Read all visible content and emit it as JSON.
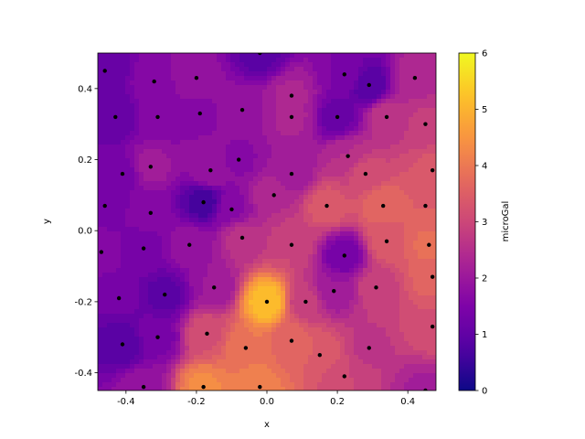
{
  "chart_data": {
    "type": "heatmap",
    "subtype": "filled-contour",
    "colormap": "plasma",
    "title": "",
    "xlabel": "x",
    "ylabel": "y",
    "colorbar_label": "microGal",
    "xlim": [
      -0.48,
      0.48
    ],
    "ylim": [
      -0.45,
      0.5
    ],
    "clim": [
      0,
      6
    ],
    "xticks": [
      "-0.4",
      "-0.2",
      "0.0",
      "0.2",
      "0.4"
    ],
    "xtick_values": [
      -0.4,
      -0.2,
      0.0,
      0.2,
      0.4
    ],
    "yticks": [
      "-0.4",
      "-0.2",
      "0.0",
      "0.2",
      "0.4"
    ],
    "ytick_values": [
      -0.4,
      -0.2,
      0.0,
      0.2,
      0.4
    ],
    "colorbar_ticks": [
      "0",
      "1",
      "2",
      "3",
      "4",
      "5",
      "6"
    ],
    "colorbar_tick_values": [
      0,
      1,
      2,
      3,
      4,
      5,
      6
    ],
    "grid": false,
    "stations": [
      {
        "x": -0.46,
        "y": 0.45,
        "value": 1.0
      },
      {
        "x": -0.32,
        "y": 0.42,
        "value": 1.7
      },
      {
        "x": -0.2,
        "y": 0.43,
        "value": 1.9
      },
      {
        "x": -0.02,
        "y": 0.5,
        "value": 0.9
      },
      {
        "x": 0.07,
        "y": 0.38,
        "value": 2.3
      },
      {
        "x": 0.22,
        "y": 0.44,
        "value": 1.5
      },
      {
        "x": 0.29,
        "y": 0.41,
        "value": 0.8
      },
      {
        "x": 0.42,
        "y": 0.43,
        "value": 2.4
      },
      {
        "x": -0.43,
        "y": 0.32,
        "value": 1.0
      },
      {
        "x": -0.31,
        "y": 0.32,
        "value": 1.6
      },
      {
        "x": -0.19,
        "y": 0.33,
        "value": 1.7
      },
      {
        "x": -0.07,
        "y": 0.34,
        "value": 1.9
      },
      {
        "x": 0.07,
        "y": 0.32,
        "value": 2.3
      },
      {
        "x": 0.2,
        "y": 0.32,
        "value": 1.1
      },
      {
        "x": 0.34,
        "y": 0.32,
        "value": 2.7
      },
      {
        "x": 0.45,
        "y": 0.3,
        "value": 2.8
      },
      {
        "x": -0.41,
        "y": 0.16,
        "value": 1.4
      },
      {
        "x": -0.33,
        "y": 0.18,
        "value": 2.1
      },
      {
        "x": -0.16,
        "y": 0.17,
        "value": 2.0
      },
      {
        "x": -0.08,
        "y": 0.2,
        "value": 1.7
      },
      {
        "x": 0.07,
        "y": 0.16,
        "value": 2.0
      },
      {
        "x": 0.23,
        "y": 0.21,
        "value": 2.5
      },
      {
        "x": 0.28,
        "y": 0.16,
        "value": 3.1
      },
      {
        "x": 0.47,
        "y": 0.17,
        "value": 3.3
      },
      {
        "x": -0.46,
        "y": 0.07,
        "value": 1.4
      },
      {
        "x": -0.33,
        "y": 0.05,
        "value": 1.6
      },
      {
        "x": -0.18,
        "y": 0.08,
        "value": 0.6
      },
      {
        "x": -0.1,
        "y": 0.06,
        "value": 1.7
      },
      {
        "x": 0.02,
        "y": 0.1,
        "value": 2.5
      },
      {
        "x": 0.17,
        "y": 0.07,
        "value": 3.4
      },
      {
        "x": 0.33,
        "y": 0.07,
        "value": 3.7
      },
      {
        "x": 0.45,
        "y": 0.07,
        "value": 3.5
      },
      {
        "x": -0.47,
        "y": -0.06,
        "value": 1.6
      },
      {
        "x": -0.35,
        "y": -0.05,
        "value": 1.4
      },
      {
        "x": -0.22,
        "y": -0.04,
        "value": 1.9
      },
      {
        "x": -0.07,
        "y": -0.02,
        "value": 2.6
      },
      {
        "x": 0.07,
        "y": -0.04,
        "value": 3.0
      },
      {
        "x": 0.22,
        "y": -0.07,
        "value": 1.3
      },
      {
        "x": 0.34,
        "y": -0.03,
        "value": 3.4
      },
      {
        "x": 0.46,
        "y": -0.04,
        "value": 3.8
      },
      {
        "x": -0.42,
        "y": -0.19,
        "value": 1.3
      },
      {
        "x": -0.29,
        "y": -0.18,
        "value": 0.9
      },
      {
        "x": -0.15,
        "y": -0.16,
        "value": 2.0
      },
      {
        "x": 0.0,
        "y": -0.2,
        "value": 5.2
      },
      {
        "x": 0.11,
        "y": -0.2,
        "value": 2.8
      },
      {
        "x": 0.19,
        "y": -0.17,
        "value": 2.0
      },
      {
        "x": 0.31,
        "y": -0.16,
        "value": 2.9
      },
      {
        "x": 0.47,
        "y": -0.13,
        "value": 3.6
      },
      {
        "x": -0.41,
        "y": -0.32,
        "value": 0.8
      },
      {
        "x": -0.31,
        "y": -0.3,
        "value": 1.4
      },
      {
        "x": -0.17,
        "y": -0.29,
        "value": 3.2
      },
      {
        "x": -0.06,
        "y": -0.33,
        "value": 4.0
      },
      {
        "x": 0.07,
        "y": -0.31,
        "value": 3.6
      },
      {
        "x": 0.15,
        "y": -0.35,
        "value": 3.5
      },
      {
        "x": 0.29,
        "y": -0.33,
        "value": 2.7
      },
      {
        "x": 0.47,
        "y": -0.27,
        "value": 3.2
      },
      {
        "x": -0.35,
        "y": -0.44,
        "value": 1.9
      },
      {
        "x": -0.18,
        "y": -0.44,
        "value": 4.3
      },
      {
        "x": -0.02,
        "y": -0.44,
        "value": 4.1
      },
      {
        "x": 0.22,
        "y": -0.41,
        "value": 3.0
      },
      {
        "x": 0.45,
        "y": -0.45,
        "value": 2.2
      }
    ]
  }
}
